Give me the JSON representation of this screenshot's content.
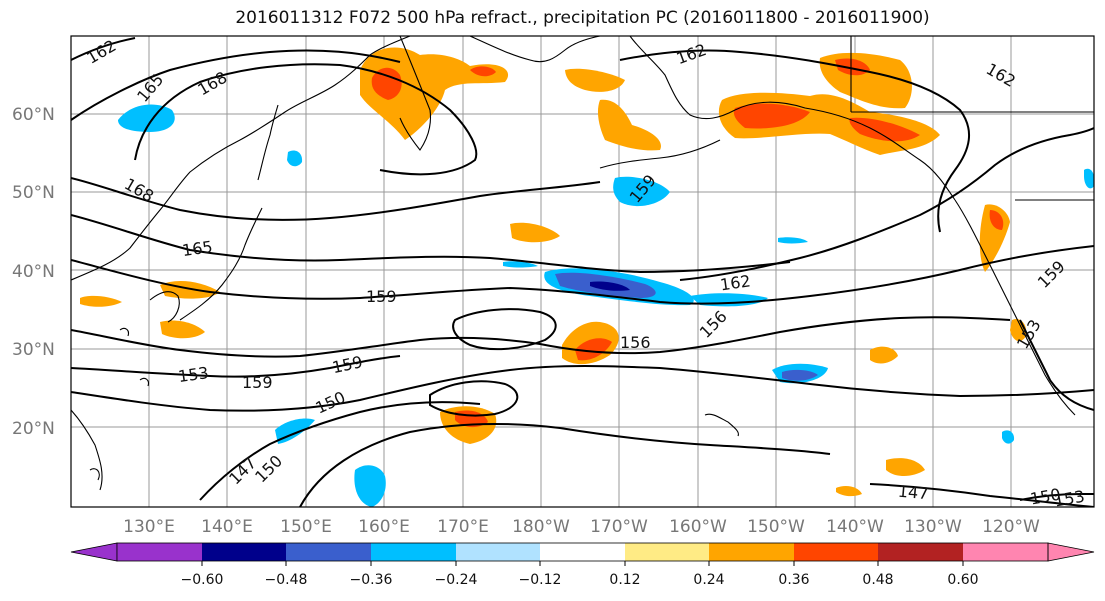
{
  "title": "2016011312 F072 500 hPa refract., precipitation PC (2016011800 - 2016011900)",
  "lat_labels": [
    "60°N",
    "50°N",
    "40°N",
    "30°N",
    "20°N"
  ],
  "lon_labels": [
    "130°E",
    "140°E",
    "150°E",
    "160°E",
    "170°E",
    "180°W",
    "170°W",
    "160°W",
    "150°W",
    "140°W",
    "130°W",
    "120°W"
  ],
  "contour_labels": [
    "162",
    "165",
    "168",
    "168",
    "162",
    "162",
    "159",
    "165",
    "159",
    "162",
    "156",
    "156",
    "153",
    "159",
    "159",
    "150",
    "147",
    "150",
    "147",
    "150",
    "153",
    "153",
    "159"
  ],
  "colorbar": {
    "colors": [
      "#9932cc",
      "#00008b",
      "#3a5fcd",
      "#00bfff",
      "#b0e2ff",
      "#ffffff",
      "#ffeb85",
      "#ffa500",
      "#ff4500",
      "#b22222",
      "#ff85b0"
    ],
    "tick_labels": [
      "−0.60",
      "−0.48",
      "−0.36",
      "−0.24",
      "−0.12",
      "0.12",
      "0.24",
      "0.36",
      "0.48",
      "0.60"
    ]
  },
  "colors": {
    "land_outline": "#000000",
    "grid": "#999999",
    "contour": "#000000"
  }
}
